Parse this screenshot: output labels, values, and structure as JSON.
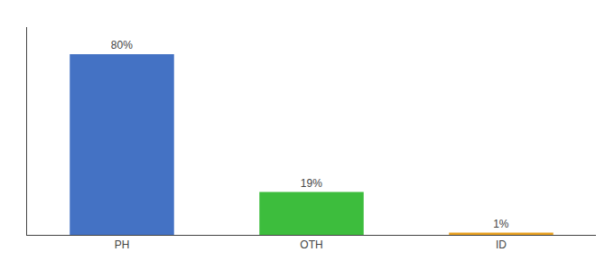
{
  "chart_data": {
    "type": "bar",
    "categories": [
      "PH",
      "OTH",
      "ID"
    ],
    "values": [
      80,
      19,
      1
    ],
    "value_labels": [
      "80%",
      "19%",
      "1%"
    ],
    "colors": [
      "#4472C4",
      "#3DBD3D",
      "#E8A020"
    ],
    "ylim": [
      0,
      92
    ],
    "grid": false,
    "data_labels": true,
    "tick_labels": "x"
  }
}
